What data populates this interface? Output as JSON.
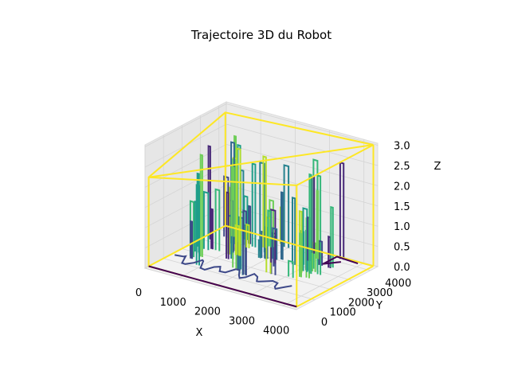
{
  "chart_data": {
    "type": "line",
    "projection": "3d",
    "title": "Trajectoire 3D du Robot",
    "xlabel": "X",
    "ylabel": "Y",
    "zlabel": "Z",
    "xlim": [
      0,
      4400
    ],
    "ylim": [
      0,
      4400
    ],
    "zlim": [
      0,
      3.05
    ],
    "xticks": [
      0,
      1000,
      2000,
      3000,
      4000
    ],
    "yticks": [
      0,
      1000,
      2000,
      3000,
      4000
    ],
    "zticks": [
      0.0,
      0.5,
      1.0,
      1.5,
      2.0,
      2.5,
      3.0
    ],
    "xtick_labels": [
      "0",
      "1000",
      "2000",
      "3000",
      "4000"
    ],
    "ytick_labels": [
      "0",
      "1000",
      "2000",
      "3000",
      "4000"
    ],
    "ztick_labels": [
      "0.0",
      "0.5",
      "1.0",
      "1.5",
      "2.0",
      "2.5",
      "3.0"
    ],
    "grid": true,
    "colormap": "viridis",
    "series": [
      {
        "color": "#fde725",
        "segments": [
          [
            [
              4300,
              4350,
              3.0
            ],
            [
              4300,
              200,
              3.0
            ],
            [
              0,
              200,
              2.2
            ],
            [
              0,
              4350,
              2.8
            ],
            [
              4300,
              4350,
              3.0
            ]
          ],
          [
            [
              4300,
              4350,
              0.0
            ],
            [
              4300,
              200,
              0.0
            ],
            [
              0,
              200,
              0.0
            ],
            [
              0,
              4350,
              0.0
            ],
            [
              4300,
              4350,
              0.0
            ]
          ],
          [
            [
              4300,
              4350,
              3.0
            ],
            [
              4300,
              4350,
              0.0
            ]
          ],
          [
            [
              4300,
              200,
              3.0
            ],
            [
              4300,
              200,
              0.0
            ]
          ],
          [
            [
              0,
              200,
              2.2
            ],
            [
              0,
              200,
              0.0
            ]
          ],
          [
            [
              0,
              4350,
              2.8
            ],
            [
              0,
              4350,
              0.0
            ]
          ],
          [
            [
              0,
              200,
              2.2
            ],
            [
              4300,
              4350,
              3.0
            ]
          ]
        ]
      },
      {
        "color": "#440154",
        "segments": [
          [
            [
              0,
              200,
              0.0
            ],
            [
              4300,
              200,
              0.0
            ]
          ],
          [
            [
              4200,
              3700,
              0.2
            ],
            [
              3700,
              3500,
              0.3
            ],
            [
              3400,
              3300,
              0.1
            ],
            [
              3600,
              3900,
              0.05
            ]
          ]
        ]
      }
    ],
    "vertical_bands": {
      "x_range": [
        400,
        3800
      ],
      "y_range": [
        1000,
        3900
      ],
      "z_range": [
        0.6,
        2.9
      ],
      "colors": [
        "#31688e",
        "#26828e",
        "#1f9e89",
        "#35b779",
        "#6ece58",
        "#b5de2b",
        "#3e4989",
        "#482878"
      ]
    }
  }
}
